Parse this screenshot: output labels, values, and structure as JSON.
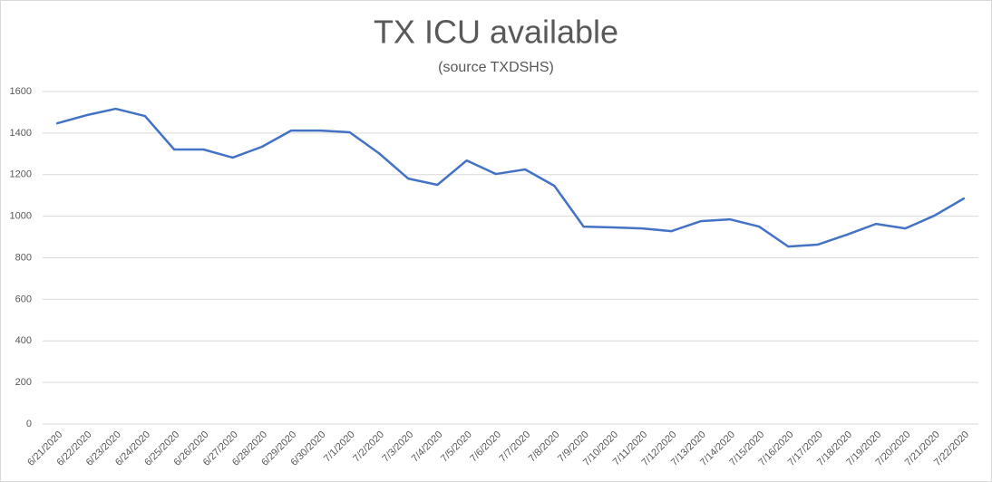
{
  "chart_data": {
    "type": "line",
    "title": "TX ICU available",
    "subtitle": "(source TXDSHS)",
    "categories": [
      "6/21/2020",
      "6/22/2020",
      "6/23/2020",
      "6/24/2020",
      "6/25/2020",
      "6/26/2020",
      "6/27/2020",
      "6/28/2020",
      "6/29/2020",
      "6/30/2020",
      "7/1/2020",
      "7/2/2020",
      "7/3/2020",
      "7/4/2020",
      "7/5/2020",
      "7/6/2020",
      "7/7/2020",
      "7/8/2020",
      "7/9/2020",
      "7/10/2020",
      "7/11/2020",
      "7/12/2020",
      "7/13/2020",
      "7/14/2020",
      "7/15/2020",
      "7/16/2020",
      "7/17/2020",
      "7/18/2020",
      "7/19/2020",
      "7/20/2020",
      "7/21/2020",
      "7/22/2020"
    ],
    "values": [
      1447,
      1486,
      1517,
      1482,
      1321,
      1321,
      1282,
      1334,
      1412,
      1412,
      1404,
      1303,
      1181,
      1151,
      1268,
      1203,
      1225,
      1146,
      950,
      946,
      941,
      928,
      976,
      985,
      950,
      854,
      863,
      911,
      963,
      941,
      1003,
      1085
    ],
    "color": "#4472c4",
    "ylim": [
      0,
      1600
    ],
    "yticks": [
      0,
      200,
      400,
      600,
      800,
      1000,
      1200,
      1400,
      1600
    ],
    "grid": true
  }
}
